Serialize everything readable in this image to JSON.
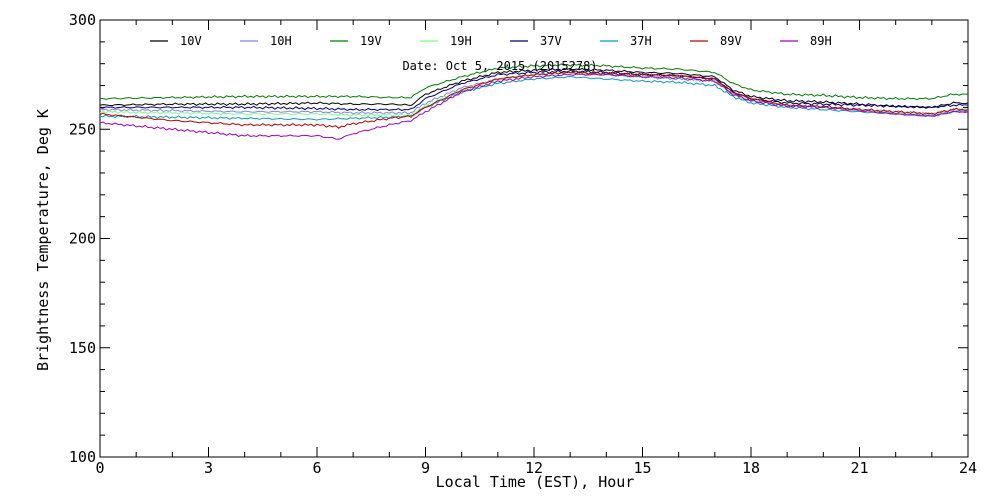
{
  "chart_data": {
    "type": "line",
    "xlabel": "Local Time (EST), Hour",
    "ylabel": "Brightness Temperature, Deg K",
    "annotation": "Date: Oct  5, 2015 (2015278)",
    "xlim": [
      0,
      24
    ],
    "ylim": [
      100,
      300
    ],
    "xticks": [
      0,
      3,
      6,
      9,
      12,
      15,
      18,
      21,
      24
    ],
    "yticks": [
      100,
      150,
      200,
      250,
      300
    ],
    "grid": false,
    "legend_position": "top",
    "series": [
      {
        "name": "10V",
        "color": "#000000",
        "x": [
          0,
          2,
          4,
          6,
          7,
          8,
          8.6,
          9,
          10,
          11,
          12,
          13,
          14,
          15,
          16,
          17,
          17.5,
          18,
          19,
          20,
          21,
          22,
          23,
          23.6,
          24
        ],
        "values": [
          261,
          261.5,
          261.5,
          262,
          261.5,
          261.5,
          261,
          266,
          272,
          276,
          277,
          277.5,
          277,
          276,
          275.5,
          274,
          268,
          265,
          263,
          262.5,
          261.5,
          260.5,
          260,
          262,
          262
        ]
      },
      {
        "name": "10H",
        "color": "#8080ff",
        "x": [
          0,
          2,
          4,
          6,
          7,
          8,
          8.6,
          9,
          10,
          11,
          12,
          13,
          14,
          15,
          16,
          17,
          17.5,
          18,
          19,
          20,
          21,
          22,
          23,
          23.6,
          24
        ],
        "values": [
          259,
          258.5,
          258,
          258,
          257.5,
          257.5,
          257.5,
          262,
          269,
          273,
          275,
          276,
          275,
          274,
          273,
          272,
          266,
          263,
          261,
          260,
          259,
          258,
          257,
          259,
          259
        ]
      },
      {
        "name": "19V",
        "color": "#008000",
        "x": [
          0,
          2,
          4,
          6,
          7,
          8,
          8.6,
          9,
          10,
          11,
          12,
          13,
          14,
          15,
          16,
          17,
          17.5,
          18,
          19,
          20,
          21,
          22,
          23,
          23.6,
          24
        ],
        "values": [
          264,
          264.5,
          265,
          265,
          265,
          264.5,
          264.5,
          269,
          274,
          278,
          279,
          279.5,
          279,
          278,
          277.5,
          276,
          271,
          268,
          266,
          265.5,
          264.5,
          264,
          264,
          266,
          266
        ]
      },
      {
        "name": "19H",
        "color": "#80ff80",
        "x": [
          0,
          2,
          4,
          6,
          7,
          8,
          8.6,
          9,
          10,
          11,
          12,
          13,
          14,
          15,
          16,
          17,
          17.5,
          18,
          19,
          20,
          21,
          22,
          23,
          23.6,
          24
        ],
        "values": [
          258,
          257.5,
          257,
          257,
          256.5,
          256.5,
          256.5,
          261,
          268,
          273,
          275,
          276,
          275,
          274,
          273.5,
          272,
          266,
          263,
          261,
          260,
          259,
          258,
          257,
          259,
          259
        ]
      },
      {
        "name": "37V",
        "color": "#000080",
        "x": [
          0,
          2,
          4,
          6,
          7,
          8,
          8.6,
          9,
          10,
          11,
          12,
          13,
          14,
          15,
          16,
          17,
          17.5,
          18,
          19,
          20,
          21,
          22,
          23,
          23.6,
          24
        ],
        "values": [
          260,
          260,
          260,
          259.5,
          259,
          259,
          259,
          264,
          271,
          275,
          276,
          276.5,
          276,
          275,
          274.5,
          273,
          267,
          264,
          262,
          261.5,
          261,
          260.5,
          260,
          261,
          261
        ]
      },
      {
        "name": "37H",
        "color": "#00a0c0",
        "x": [
          0,
          2,
          4,
          6,
          7,
          8,
          8.6,
          9,
          10,
          11,
          12,
          13,
          14,
          15,
          16,
          17,
          17.5,
          18,
          19,
          20,
          21,
          22,
          23,
          23.6,
          24
        ],
        "values": [
          256,
          255.5,
          255,
          254.5,
          255,
          255.5,
          256,
          260,
          267,
          271,
          273,
          274,
          273,
          272,
          271.5,
          270,
          265,
          262,
          260,
          259,
          258,
          257,
          256,
          258,
          258
        ]
      },
      {
        "name": "89V",
        "color": "#c00000",
        "x": [
          0,
          2,
          4,
          6,
          6.6,
          7,
          8,
          8.6,
          9,
          10,
          11,
          12,
          13,
          14,
          15,
          16,
          17,
          17.5,
          18,
          19,
          20,
          21,
          22,
          23,
          23.6,
          24
        ],
        "values": [
          257,
          254,
          252,
          252,
          251,
          252.5,
          255,
          256,
          260,
          268,
          273,
          275,
          276,
          275.5,
          275,
          274.5,
          273,
          267,
          264,
          261,
          260.5,
          259,
          258,
          257,
          259,
          259
        ]
      },
      {
        "name": "89H",
        "color": "#a000c0",
        "x": [
          0,
          2,
          4,
          6,
          6.6,
          7,
          8,
          8.6,
          9,
          10,
          11,
          12,
          13,
          14,
          15,
          16,
          17,
          17.5,
          18,
          19,
          20,
          21,
          22,
          23,
          23.6,
          24
        ],
        "values": [
          253,
          250,
          247,
          247,
          245.5,
          248,
          252,
          254,
          258,
          267,
          272,
          274,
          275,
          275,
          274,
          273.5,
          272,
          266,
          263,
          260.5,
          260,
          258.5,
          257,
          256,
          258,
          258
        ]
      }
    ]
  }
}
